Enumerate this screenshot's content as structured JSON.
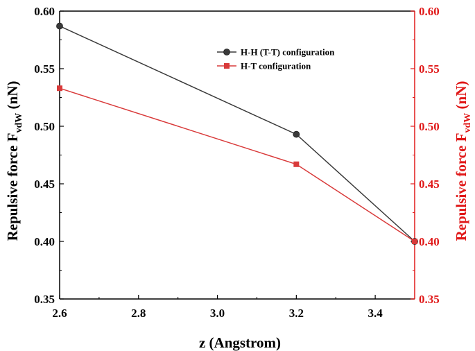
{
  "chart_data": {
    "type": "line",
    "x": [
      2.6,
      3.2,
      3.5
    ],
    "xlabel": "z (Angstrom)",
    "xlim": [
      2.6,
      3.5
    ],
    "xticks": [
      "2.6",
      "2.8",
      "3.0",
      "3.2",
      "3.4"
    ],
    "ylabel_left": {
      "main": "Repulsive force F",
      "sub": "vdW",
      "unit": " (nN)"
    },
    "ylabel_right": {
      "main": "Repulsive force F",
      "sub": "vdW",
      "unit": " (nN)"
    },
    "ylim": [
      0.35,
      0.6
    ],
    "yticks": [
      "0.35",
      "0.40",
      "0.45",
      "0.50",
      "0.55",
      "0.60"
    ],
    "grid": false,
    "legend_position": "top-center",
    "series": [
      {
        "name": "H-H (T-T) configuration",
        "values": [
          0.587,
          0.493,
          0.4
        ],
        "color": "#3a3a3a",
        "marker": "circle",
        "axis": "left"
      },
      {
        "name": "H-T configuration",
        "values": [
          0.533,
          0.467,
          0.4
        ],
        "color": "#d93a3a",
        "marker": "square",
        "axis": "right"
      }
    ],
    "left_axis_color": "#000000",
    "right_axis_color": "#e01818"
  }
}
